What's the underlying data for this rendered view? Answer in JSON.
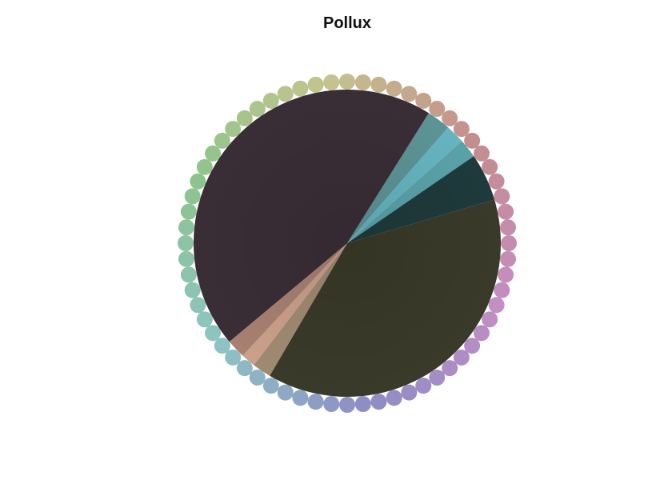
{
  "chart_data": {
    "type": "pie",
    "title": "Pollux",
    "slices": [
      {
        "value": 38.0,
        "color": "#3a3a2a"
      },
      {
        "value": 2.0,
        "color": "#a08a72"
      },
      {
        "value": 1.5,
        "color": "#caa08a"
      },
      {
        "value": 2.0,
        "color": "#a88072"
      },
      {
        "value": 45.0,
        "color": "#3a2e36"
      },
      {
        "value": 2.5,
        "color": "#5c9496"
      },
      {
        "value": 2.0,
        "color": "#66b4c0"
      },
      {
        "value": 2.0,
        "color": "#5aa2aa"
      },
      {
        "value": 5.0,
        "color": "#1f3a3c"
      }
    ],
    "ring_dots": {
      "count": 64,
      "hue_start": 72,
      "direction": "clockwise",
      "color_start": "#b3ae7a"
    },
    "grid": false,
    "legend": "none"
  }
}
